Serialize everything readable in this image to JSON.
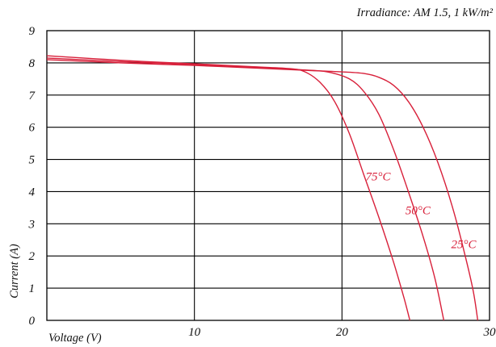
{
  "chart_data": {
    "type": "line",
    "title": "",
    "annotation": "Irradiance: AM 1.5, 1 kW/m²",
    "xlabel": "Voltage (V)",
    "ylabel": "Current (A)",
    "xlim": [
      0,
      30
    ],
    "ylim": [
      0,
      9
    ],
    "xticks": [
      10,
      20,
      30
    ],
    "yticks": [
      0,
      1,
      2,
      3,
      4,
      5,
      6,
      7,
      8,
      9
    ],
    "x_gridlines": [
      10,
      20
    ],
    "grid": true,
    "series_color": "#d8203a",
    "series": [
      {
        "name": "25°C",
        "points": [
          [
            0,
            8.1
          ],
          [
            5,
            8.0
          ],
          [
            10,
            7.92
          ],
          [
            15,
            7.82
          ],
          [
            18,
            7.76
          ],
          [
            20,
            7.72
          ],
          [
            21.5,
            7.67
          ],
          [
            22.5,
            7.55
          ],
          [
            23.5,
            7.3
          ],
          [
            24.5,
            6.8
          ],
          [
            25.5,
            6.0
          ],
          [
            26.5,
            4.9
          ],
          [
            27.5,
            3.5
          ],
          [
            28.3,
            2.1
          ],
          [
            28.9,
            0.9
          ],
          [
            29.2,
            0
          ]
        ]
      },
      {
        "name": "50°C",
        "points": [
          [
            0,
            8.15
          ],
          [
            5,
            8.04
          ],
          [
            10,
            7.95
          ],
          [
            15,
            7.84
          ],
          [
            17.5,
            7.78
          ],
          [
            19,
            7.72
          ],
          [
            20.5,
            7.5
          ],
          [
            21.5,
            7.1
          ],
          [
            22.5,
            6.4
          ],
          [
            23.5,
            5.3
          ],
          [
            24.5,
            4.0
          ],
          [
            25.5,
            2.6
          ],
          [
            26.3,
            1.3
          ],
          [
            26.9,
            0
          ]
        ]
      },
      {
        "name": "75°C",
        "points": [
          [
            0,
            8.22
          ],
          [
            5,
            8.08
          ],
          [
            10,
            7.97
          ],
          [
            14,
            7.88
          ],
          [
            16.5,
            7.82
          ],
          [
            17.5,
            7.72
          ],
          [
            18.5,
            7.4
          ],
          [
            19.5,
            6.8
          ],
          [
            20.5,
            5.8
          ],
          [
            21.5,
            4.5
          ],
          [
            22.5,
            3.2
          ],
          [
            23.5,
            1.8
          ],
          [
            24.2,
            0.7
          ],
          [
            24.6,
            0
          ]
        ]
      }
    ],
    "series_labels": [
      {
        "text": "75°C",
        "x": 21.6,
        "y": 4.35
      },
      {
        "text": "50°C",
        "x": 24.3,
        "y": 3.3
      },
      {
        "text": "25°C",
        "x": 27.4,
        "y": 2.25
      }
    ]
  }
}
